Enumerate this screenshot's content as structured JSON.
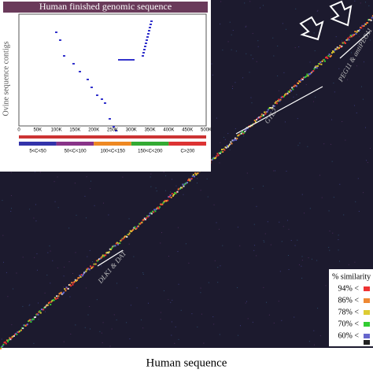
{
  "figure": {
    "x_label": "Human sequence",
    "y_label": "Ovine sequence contigs",
    "annotations": [
      "PEG11 & antiPEG11",
      "GTL2",
      "DLK1 & DAT"
    ],
    "inset": {
      "title": "Human finished genomic sequence",
      "xticks": [
        "0",
        "50K",
        "100K",
        "150K",
        "200K",
        "250K",
        "300K",
        "350K",
        "400K",
        "450K",
        "500K"
      ],
      "bar_legend": [
        "5<C<50",
        "50<C<100",
        "100<C<150",
        "150<C<200",
        "C>200"
      ]
    },
    "legend": {
      "title": "% similarity",
      "items": [
        "94% <",
        "86% <",
        "78% <",
        "70% <",
        "60% <"
      ]
    }
  }
}
